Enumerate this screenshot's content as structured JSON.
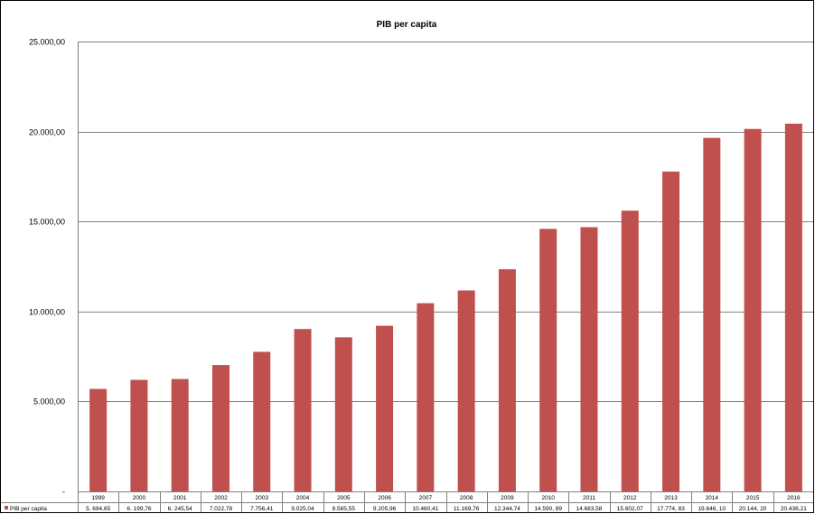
{
  "chart_data": {
    "type": "bar",
    "title": "PIB per capita",
    "xlabel": "",
    "ylabel": "",
    "ylim": [
      0,
      25000
    ],
    "y_ticks": [
      {
        "value": 0,
        "label": "-"
      },
      {
        "value": 5000,
        "label": "5.000,00"
      },
      {
        "value": 10000,
        "label": "10.000,00"
      },
      {
        "value": 15000,
        "label": "15.000,00"
      },
      {
        "value": 20000,
        "label": "20.000,00"
      },
      {
        "value": 25000,
        "label": "25.000,00"
      }
    ],
    "grid": true,
    "legend": "data-table",
    "categories": [
      "1999",
      "2000",
      "2001",
      "2002",
      "2003",
      "2004",
      "2005",
      "2006",
      "2007",
      "2008",
      "2009",
      "2010",
      "2011",
      "2012",
      "2013",
      "2014",
      "2015",
      "2016"
    ],
    "series": [
      {
        "name": "PIB per capita",
        "color": "#c0504d",
        "values": [
          5694.65,
          6199.76,
          6245.54,
          7022.78,
          7756.41,
          9025.04,
          8565.55,
          9205.96,
          10460.41,
          11169.76,
          12344.74,
          14590.89,
          14683.58,
          15602.07,
          17774.83,
          19646.1,
          20144.2,
          20436.21
        ],
        "table_labels": [
          "5. 694,65",
          "6. 199,76",
          "6. 245,54",
          "7.022,78",
          "7.756,41",
          "9.025,04",
          "8.565,55",
          "9.205,96",
          "10.460,41",
          "11.169,76",
          "12.344,74",
          "14.590, 89",
          "14.683,58",
          "15.602,07",
          "17.774, 83",
          "19.646, 10",
          "20.144, 20",
          "20.436,21"
        ]
      }
    ]
  }
}
